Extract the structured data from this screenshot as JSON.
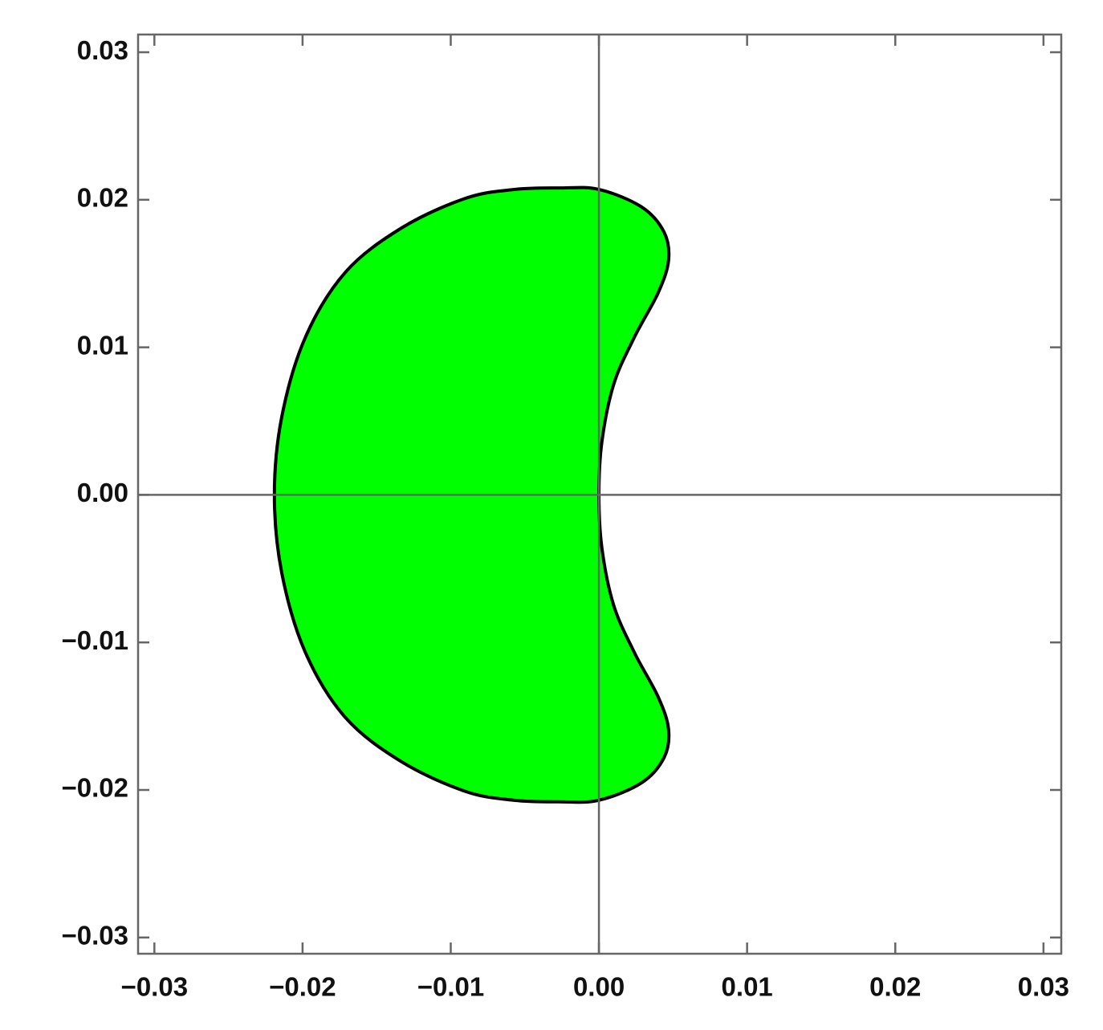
{
  "chart_data": {
    "type": "area",
    "x": [
      -0.0219,
      -0.0214,
      -0.0198,
      -0.0171,
      -0.0133,
      -0.009,
      -0.0057,
      -0.0027,
      0,
      0.0029,
      0.0044,
      0.0047,
      0.004,
      0.0024,
      0.001,
      0.0002,
      0,
      0.0002,
      0.001,
      0.0024,
      0.004,
      0.0047,
      0.0044,
      0.0029,
      0,
      -0.0027,
      -0.0057,
      -0.009,
      -0.0133,
      -0.0171,
      -0.0198,
      -0.0214
    ],
    "values": [
      0,
      0.0053,
      0.0107,
      0.0151,
      0.0181,
      0.0201,
      0.0207,
      0.0208,
      0.0207,
      0.0195,
      0.0178,
      0.0159,
      0.0137,
      0.0107,
      0.0075,
      0.0036,
      0,
      -0.0036,
      -0.0075,
      -0.0107,
      -0.0137,
      -0.0159,
      -0.0178,
      -0.0195,
      -0.0207,
      -0.0208,
      -0.0207,
      -0.0201,
      -0.0181,
      -0.0151,
      -0.0107,
      -0.0053
    ],
    "color": "#00ff00",
    "edge_color": "#000000",
    "closed": true,
    "xlim": [
      -0.0311,
      0.0312
    ],
    "ylim": [
      -0.0311,
      0.0312
    ],
    "xticks": [
      {
        "value": -0.03,
        "label": "−0.03"
      },
      {
        "value": -0.02,
        "label": "−0.02"
      },
      {
        "value": -0.01,
        "label": "−0.01"
      },
      {
        "value": 0,
        "label": "0.00"
      },
      0.01,
      0.02,
      0.03
    ],
    "yticks": [
      {
        "value": -0.03,
        "label": "−0.03"
      },
      {
        "value": -0.02,
        "label": "−0.02"
      },
      {
        "value": -0.01,
        "label": "−0.01"
      },
      {
        "value": 0,
        "label": "0.00"
      },
      0.01,
      0.02,
      0.03
    ],
    "axes_at_origin": true
  }
}
